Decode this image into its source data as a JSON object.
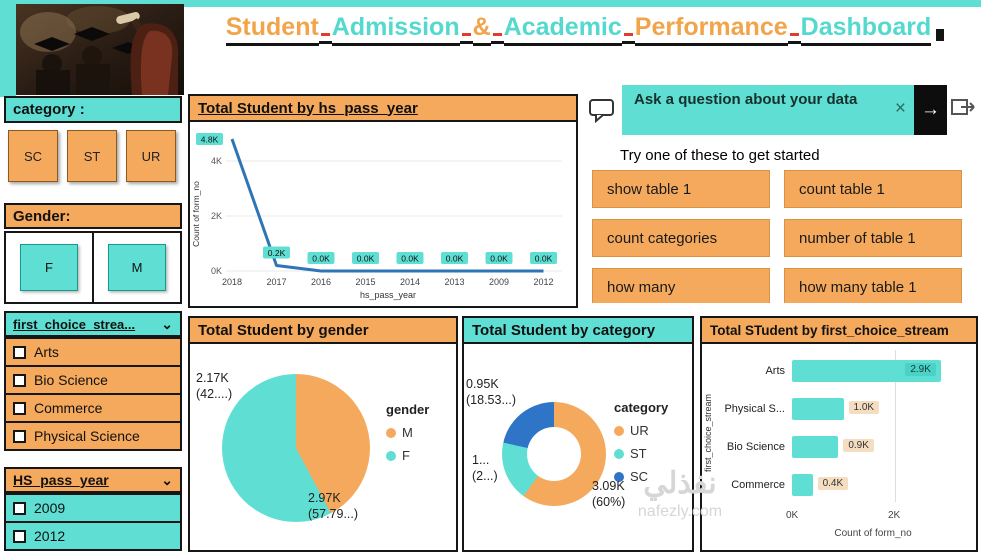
{
  "accent": {
    "teal": "#5FDFD3",
    "orange": "#F5A95C",
    "blue": "#2E75B6",
    "dark": "#161616"
  },
  "title": {
    "words": [
      {
        "text": "Student",
        "color": "#F2A44A"
      },
      {
        "text": "Admission",
        "color": "#53D9CD"
      },
      {
        "text": "&",
        "color": "#F2A44A"
      },
      {
        "text": "Academic",
        "color": "#53D9CD"
      },
      {
        "text": "Performance",
        "color": "#F2A44A"
      },
      {
        "text": "Dashboard",
        "color": "#53D9CD"
      }
    ]
  },
  "sidebar": {
    "category_label": "category :",
    "category_buttons": [
      "SC",
      "ST",
      "UR"
    ],
    "gender_label": "Gender:",
    "gender_buttons": [
      "F",
      "M"
    ],
    "stream_filter": {
      "label": "first_choice_strea...",
      "chevron": "⌄",
      "options": [
        "Arts",
        "Bio Science",
        "Commerce",
        "Physical Science"
      ]
    },
    "year_filter": {
      "label": "HS_pass_year",
      "chevron": "⌄",
      "options": [
        "2009",
        "2012"
      ]
    }
  },
  "qna": {
    "input_text": "Ask a question about your data",
    "clear_label": "×",
    "submit_label": "→",
    "hint": "Try one of these to get started",
    "suggestions": [
      "show table 1",
      "count table 1",
      "count categories",
      "number of table 1",
      "how many",
      "how many table 1"
    ]
  },
  "chart_data": [
    {
      "type": "line",
      "title": "Total Student by hs_pass_year",
      "x": [
        "2018",
        "2017",
        "2016",
        "2015",
        "2014",
        "2013",
        "2009",
        "2012"
      ],
      "values": [
        4.8,
        0.2,
        0,
        0,
        0,
        0,
        0,
        0
      ],
      "labels": [
        "4.8K",
        "0.2K",
        "0.0K",
        "0.0K",
        "0.0K",
        "0.0K",
        "0.0K",
        "0.0K"
      ],
      "xlabel": "hs_pass_year",
      "ylabel": "Count of form_no",
      "yticks": [
        "0K",
        "2K",
        "4K"
      ],
      "ytick_values": [
        0,
        2,
        4
      ],
      "line_color": "#2E75B6",
      "label_bg": "#5FDFD3"
    },
    {
      "type": "pie",
      "title": "Total Student by gender",
      "legend_title": "gender",
      "slices": [
        {
          "label": "M",
          "pct": 42.21,
          "color": "#F5A95C",
          "callout": [
            "2.17K",
            "(42....)"
          ]
        },
        {
          "label": "F",
          "pct": 57.79,
          "color": "#5FDFD3",
          "callout": [
            "2.97K",
            "(57.79...)"
          ]
        }
      ]
    },
    {
      "type": "donut",
      "title": "Total Student by category",
      "legend_title": "category",
      "slices": [
        {
          "label": "UR",
          "pct": 60,
          "color": "#F5A95C",
          "callout": [
            "3.09K",
            "(60%)"
          ]
        },
        {
          "label": "ST",
          "pct": 18.53,
          "color": "#5FDFD3",
          "callout": [
            "0.95K",
            "(18.53...)"
          ]
        },
        {
          "label": "SC",
          "pct": 21.47,
          "color": "#2E75C8",
          "callout": [
            "1...",
            "(2...)"
          ]
        }
      ]
    },
    {
      "type": "bar",
      "title": "Total STudent by first_choice_stream",
      "categories": [
        "Arts",
        "Physical S...",
        "Bio Science",
        "Commerce"
      ],
      "values": [
        2.9,
        1.0,
        0.9,
        0.4
      ],
      "labels": [
        "2.9K",
        "1.0K",
        "0.9K",
        "0.4K"
      ],
      "xticks": [
        "0K",
        "2K"
      ],
      "xtick_values": [
        0,
        2
      ],
      "xlabel": "Count of form_no",
      "ylabel": "first_choice_stream",
      "bar_color": "#5FDFD3"
    }
  ],
  "watermark": {
    "line1": "نفذلي",
    "line2": "nafezly.com"
  }
}
